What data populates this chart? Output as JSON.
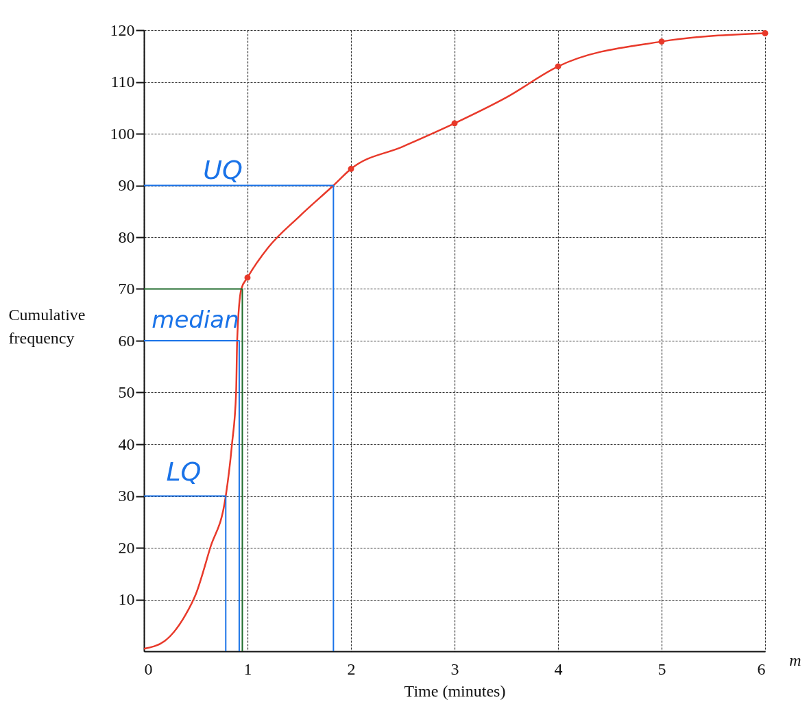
{
  "chart_data": {
    "type": "line",
    "xlabel": "Time (minutes)",
    "ylabel": "Cumulative frequency",
    "xlim": [
      0,
      6
    ],
    "ylim": [
      0,
      120
    ],
    "xticks": [
      0,
      1,
      2,
      3,
      4,
      5,
      6
    ],
    "yticks": [
      10,
      20,
      30,
      40,
      50,
      60,
      70,
      80,
      90,
      100,
      110,
      120
    ],
    "grid": true,
    "series": [
      {
        "type": "line",
        "color": "#e8392a",
        "x": [
          0,
          0.2,
          0.4,
          0.5,
          0.64,
          0.79,
          0.85,
          0.89,
          0.9,
          0.94,
          1,
          1.2,
          1.5,
          1.83,
          2,
          2.5,
          3,
          3.5,
          4,
          5,
          6
        ],
        "values": [
          0.5,
          2,
          7,
          11,
          20,
          30,
          40,
          50,
          60,
          70,
          72.2,
          78,
          84,
          90,
          93.2,
          97.5,
          102,
          107,
          113,
          117.8,
          119.4
        ]
      },
      {
        "type": "scatter",
        "color": "#e8392a",
        "marker": "circle",
        "x": [
          1,
          2,
          3,
          4,
          5,
          6
        ],
        "values": [
          72.2,
          93.2,
          102,
          113,
          117.8,
          119.4
        ]
      },
      {
        "type": "line",
        "color": "#1a73e8",
        "x": [
          0,
          1.83,
          1.83
        ],
        "values": [
          90,
          90,
          0
        ]
      },
      {
        "type": "line",
        "color": "#1e6b2a",
        "x": [
          0,
          0.95,
          0.95
        ],
        "values": [
          70,
          70,
          0
        ]
      },
      {
        "type": "line",
        "color": "#1a73e8",
        "x": [
          0,
          0.92,
          0.92
        ],
        "values": [
          60,
          60,
          0
        ]
      },
      {
        "type": "line",
        "color": "#1a73e8",
        "x": [
          0,
          0.79,
          0.79
        ],
        "values": [
          30,
          30,
          0
        ]
      }
    ],
    "annotations": [
      "UQ",
      "median",
      "LQ",
      "m"
    ]
  }
}
